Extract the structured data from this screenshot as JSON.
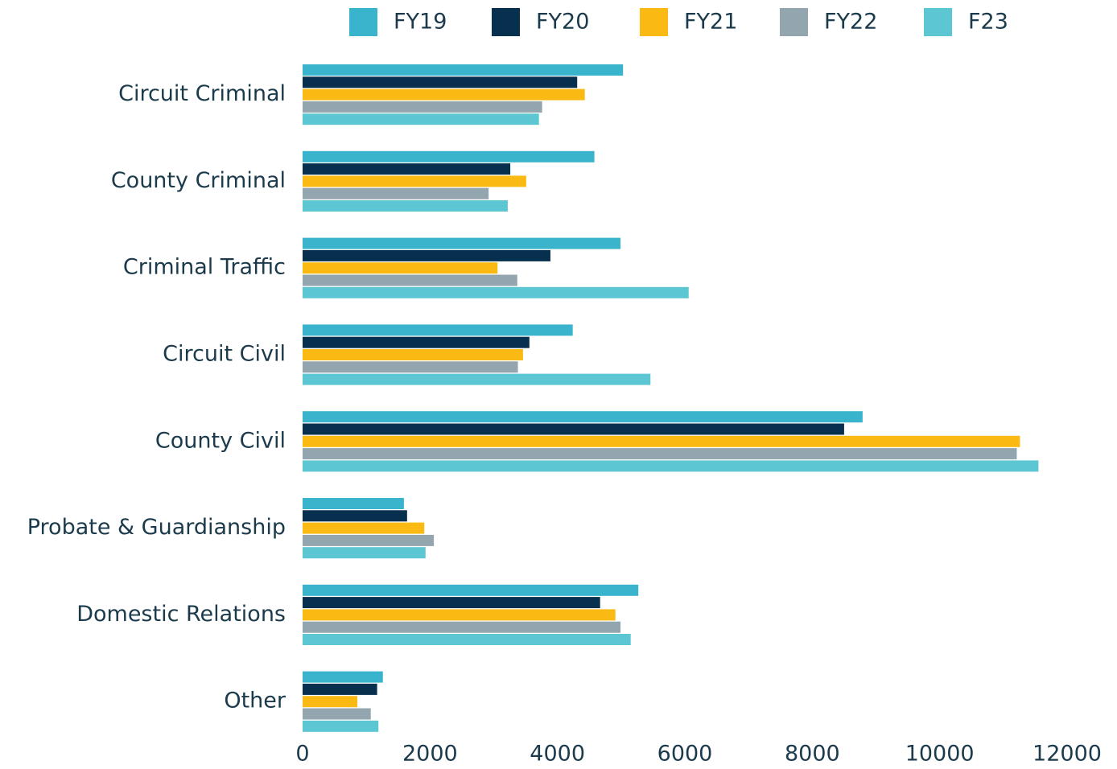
{
  "chart_data": {
    "type": "bar",
    "orientation": "horizontal",
    "categories": [
      "Circuit Criminal",
      "County Criminal",
      "Criminal Traffic",
      "Circuit Civil",
      "County Civil",
      "Probate & Guardianship",
      "Domestic Relations",
      "Other"
    ],
    "series": [
      {
        "name": "FY19",
        "color": "#3ab3cc",
        "values": [
          5030,
          4580,
          4990,
          4240,
          8790,
          1590,
          5270,
          1260
        ]
      },
      {
        "name": "FY20",
        "color": "#06304d",
        "values": [
          4310,
          3260,
          3890,
          3560,
          8500,
          1640,
          4670,
          1170
        ]
      },
      {
        "name": "FY21",
        "color": "#fbba13",
        "values": [
          4430,
          3510,
          3060,
          3460,
          11260,
          1910,
          4910,
          860
        ]
      },
      {
        "name": "FY22",
        "color": "#93a5ae",
        "values": [
          3760,
          2920,
          3370,
          3380,
          11210,
          2060,
          4990,
          1070
        ]
      },
      {
        "name": "F23",
        "color": "#5cc7d3",
        "values": [
          3710,
          3220,
          6060,
          5460,
          11550,
          1930,
          5150,
          1190
        ]
      }
    ],
    "xlim": [
      0,
      12000
    ],
    "xticks": [
      0,
      2000,
      4000,
      6000,
      8000,
      10000,
      12000
    ],
    "legend": "top",
    "grid": false
  }
}
